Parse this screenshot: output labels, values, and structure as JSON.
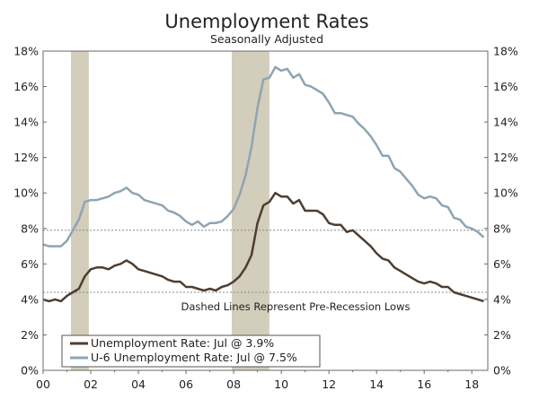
{
  "chart_data": {
    "type": "line",
    "title": "Unemployment Rates",
    "subtitle": "Seasonally Adjusted",
    "x_range": [
      2000,
      2018.67
    ],
    "x_ticks": [
      2000,
      2002,
      2004,
      2006,
      2008,
      2010,
      2012,
      2014,
      2016,
      2018
    ],
    "x_tick_labels": [
      "00",
      "02",
      "04",
      "06",
      "08",
      "10",
      "12",
      "14",
      "16",
      "18"
    ],
    "ylim": [
      0,
      18
    ],
    "y_ticks": [
      0,
      2,
      4,
      6,
      8,
      10,
      12,
      14,
      16,
      18
    ],
    "y_tick_labels": [
      "0%",
      "2%",
      "4%",
      "6%",
      "8%",
      "10%",
      "12%",
      "14%",
      "16%",
      "18%"
    ],
    "recessions": [
      {
        "start": 2001.17,
        "end": 2001.92
      },
      {
        "start": 2007.92,
        "end": 2009.5
      }
    ],
    "reference_lines": [
      {
        "name": "U-6 pre-recession low",
        "value": 7.9
      },
      {
        "name": "Unemployment pre-recession low",
        "value": 4.4
      }
    ],
    "annotation": "Dashed Lines Represent Pre-Recession Lows",
    "colors": {
      "unemployment": "#4d3e32",
      "u6": "#8ea4b3",
      "recession": "#d3cdbb",
      "reference": "#7f8a93"
    },
    "series": [
      {
        "name": "Unemployment Rate: Jul @ 3.9%",
        "key": "unemployment",
        "x": [
          2000.0,
          2000.25,
          2000.5,
          2000.75,
          2001.0,
          2001.25,
          2001.5,
          2001.75,
          2002.0,
          2002.25,
          2002.5,
          2002.75,
          2003.0,
          2003.25,
          2003.5,
          2003.75,
          2004.0,
          2004.25,
          2004.5,
          2004.75,
          2005.0,
          2005.25,
          2005.5,
          2005.75,
          2006.0,
          2006.25,
          2006.5,
          2006.75,
          2007.0,
          2007.25,
          2007.5,
          2007.75,
          2008.0,
          2008.25,
          2008.5,
          2008.75,
          2009.0,
          2009.25,
          2009.5,
          2009.75,
          2010.0,
          2010.25,
          2010.5,
          2010.75,
          2011.0,
          2011.25,
          2011.5,
          2011.75,
          2012.0,
          2012.25,
          2012.5,
          2012.75,
          2013.0,
          2013.25,
          2013.5,
          2013.75,
          2014.0,
          2014.25,
          2014.5,
          2014.75,
          2015.0,
          2015.25,
          2015.5,
          2015.75,
          2016.0,
          2016.25,
          2016.5,
          2016.75,
          2017.0,
          2017.25,
          2017.5,
          2017.75,
          2018.0,
          2018.25,
          2018.5
        ],
        "values": [
          4.0,
          3.9,
          4.0,
          3.9,
          4.2,
          4.4,
          4.6,
          5.3,
          5.7,
          5.8,
          5.8,
          5.7,
          5.9,
          6.0,
          6.2,
          6.0,
          5.7,
          5.6,
          5.5,
          5.4,
          5.3,
          5.1,
          5.0,
          5.0,
          4.7,
          4.7,
          4.6,
          4.5,
          4.6,
          4.5,
          4.7,
          4.8,
          5.0,
          5.3,
          5.8,
          6.5,
          8.3,
          9.3,
          9.5,
          10.0,
          9.8,
          9.8,
          9.4,
          9.6,
          9.0,
          9.0,
          9.0,
          8.8,
          8.3,
          8.2,
          8.2,
          7.8,
          7.9,
          7.6,
          7.3,
          7.0,
          6.6,
          6.3,
          6.2,
          5.8,
          5.6,
          5.4,
          5.2,
          5.0,
          4.9,
          5.0,
          4.9,
          4.7,
          4.7,
          4.4,
          4.3,
          4.2,
          4.1,
          4.0,
          3.9
        ]
      },
      {
        "name": "U-6 Unemployment Rate: Jul @ 7.5%",
        "key": "u6",
        "x": [
          2000.0,
          2000.25,
          2000.5,
          2000.75,
          2001.0,
          2001.25,
          2001.5,
          2001.75,
          2002.0,
          2002.25,
          2002.5,
          2002.75,
          2003.0,
          2003.25,
          2003.5,
          2003.75,
          2004.0,
          2004.25,
          2004.5,
          2004.75,
          2005.0,
          2005.25,
          2005.5,
          2005.75,
          2006.0,
          2006.25,
          2006.5,
          2006.75,
          2007.0,
          2007.25,
          2007.5,
          2007.75,
          2008.0,
          2008.25,
          2008.5,
          2008.75,
          2009.0,
          2009.25,
          2009.5,
          2009.75,
          2010.0,
          2010.25,
          2010.5,
          2010.75,
          2011.0,
          2011.25,
          2011.5,
          2011.75,
          2012.0,
          2012.25,
          2012.5,
          2012.75,
          2013.0,
          2013.25,
          2013.5,
          2013.75,
          2014.0,
          2014.25,
          2014.5,
          2014.75,
          2015.0,
          2015.25,
          2015.5,
          2015.75,
          2016.0,
          2016.25,
          2016.5,
          2016.75,
          2017.0,
          2017.25,
          2017.5,
          2017.75,
          2018.0,
          2018.25,
          2018.5
        ],
        "values": [
          7.1,
          7.0,
          7.0,
          7.0,
          7.3,
          7.9,
          8.5,
          9.5,
          9.6,
          9.6,
          9.7,
          9.8,
          10.0,
          10.1,
          10.3,
          10.0,
          9.9,
          9.6,
          9.5,
          9.4,
          9.3,
          9.0,
          8.9,
          8.7,
          8.4,
          8.2,
          8.4,
          8.1,
          8.3,
          8.3,
          8.4,
          8.7,
          9.1,
          9.9,
          11.0,
          12.6,
          14.8,
          16.4,
          16.5,
          17.1,
          16.9,
          17.0,
          16.5,
          16.7,
          16.1,
          16.0,
          15.8,
          15.6,
          15.1,
          14.5,
          14.5,
          14.4,
          14.3,
          13.9,
          13.6,
          13.2,
          12.7,
          12.1,
          12.1,
          11.4,
          11.2,
          10.8,
          10.4,
          9.9,
          9.7,
          9.8,
          9.7,
          9.3,
          9.2,
          8.6,
          8.5,
          8.1,
          8.0,
          7.8,
          7.5
        ]
      }
    ]
  }
}
